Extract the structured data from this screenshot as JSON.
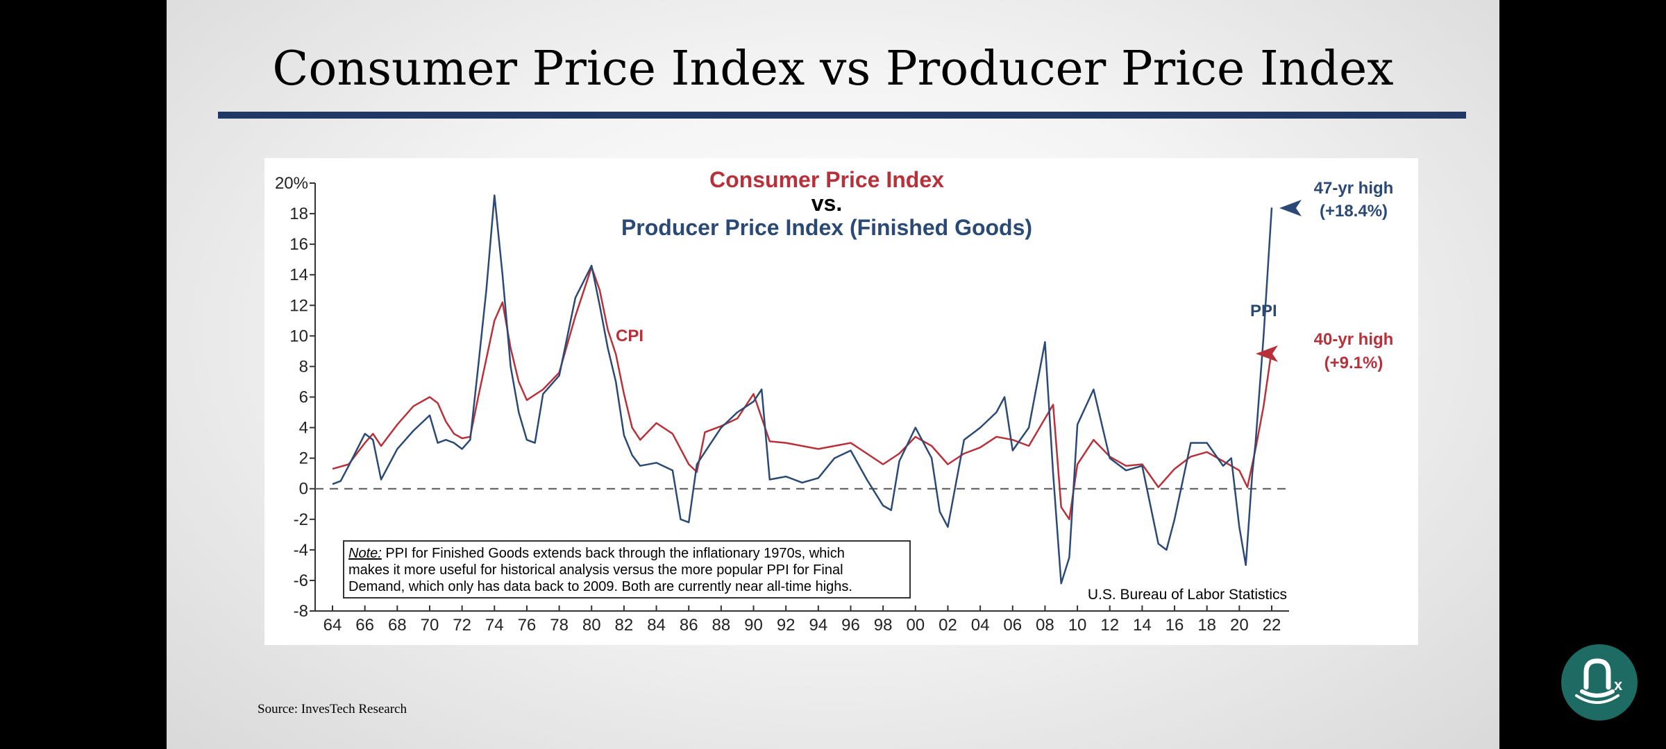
{
  "slide": {
    "title": "Consumer Price Index vs Producer Price Index",
    "source": "Source: InvesTech Research",
    "colors": {
      "rule": "#1f3864",
      "cpi": "#b8313a",
      "ppi": "#2a4a75",
      "badge": "#1d6b62"
    },
    "logo_icon": "bird-logo-icon"
  },
  "chart_data": {
    "type": "line",
    "title_line1": "Consumer Price Index",
    "title_line2": "vs.",
    "title_line3": "Producer Price Index (Finished Goods)",
    "xlabel": "",
    "ylabel": "",
    "x_ticks": [
      "64",
      "66",
      "68",
      "70",
      "72",
      "74",
      "76",
      "78",
      "80",
      "82",
      "84",
      "86",
      "88",
      "90",
      "92",
      "94",
      "96",
      "98",
      "00",
      "02",
      "04",
      "06",
      "08",
      "10",
      "12",
      "14",
      "16",
      "18",
      "20",
      "22"
    ],
    "y_ticks": [
      "20%",
      "18",
      "16",
      "14",
      "12",
      "10",
      "8",
      "6",
      "4",
      "2",
      "0",
      "-2",
      "-4",
      "-6",
      "-8"
    ],
    "xlim": [
      1964,
      2022.6
    ],
    "ylim": [
      -8,
      20
    ],
    "zero_line": "dashed",
    "grid": false,
    "series": [
      {
        "name": "CPI",
        "color": "#b8313a",
        "x": [
          1964,
          1965,
          1966,
          1966.5,
          1967,
          1968,
          1969,
          1970,
          1970.5,
          1971,
          1971.5,
          1972,
          1972.5,
          1973,
          1973.5,
          1974,
          1974.5,
          1975,
          1975.5,
          1976,
          1977,
          1978,
          1979,
          1980,
          1980.5,
          1981,
          1981.5,
          1982,
          1982.5,
          1983,
          1984,
          1985,
          1986,
          1986.5,
          1987,
          1988,
          1989,
          1990,
          1991,
          1992,
          1993,
          1994,
          1995,
          1996,
          1997,
          1998,
          1999,
          2000,
          2001,
          2002,
          2003,
          2004,
          2005,
          2006,
          2007,
          2008,
          2008.5,
          2009,
          2009.5,
          2010,
          2011,
          2012,
          2013,
          2014,
          2015,
          2016,
          2017,
          2018,
          2019,
          2020,
          2020.5,
          2021,
          2021.5,
          2022
        ],
        "values": [
          1.3,
          1.6,
          3.0,
          3.6,
          2.8,
          4.2,
          5.4,
          6.0,
          5.6,
          4.4,
          3.6,
          3.3,
          3.4,
          6.0,
          8.5,
          11.0,
          12.2,
          9.2,
          7.0,
          5.8,
          6.5,
          7.6,
          11.3,
          14.5,
          13.0,
          10.4,
          8.8,
          6.2,
          4.0,
          3.2,
          4.3,
          3.6,
          1.6,
          1.1,
          3.7,
          4.1,
          4.6,
          6.2,
          3.1,
          3.0,
          2.8,
          2.6,
          2.8,
          3.0,
          2.3,
          1.6,
          2.3,
          3.4,
          2.8,
          1.6,
          2.3,
          2.7,
          3.4,
          3.2,
          2.8,
          4.6,
          5.5,
          -1.2,
          -2.0,
          1.6,
          3.2,
          2.1,
          1.5,
          1.6,
          0.1,
          1.3,
          2.1,
          2.4,
          1.8,
          1.2,
          0.1,
          2.6,
          5.4,
          9.1
        ]
      },
      {
        "name": "PPI",
        "color": "#2a4a75",
        "x": [
          1964,
          1964.5,
          1965,
          1966,
          1966.5,
          1967,
          1968,
          1969,
          1970,
          1970.5,
          1971,
          1971.5,
          1972,
          1972.5,
          1973,
          1973.5,
          1974,
          1974.5,
          1975,
          1975.5,
          1976,
          1976.5,
          1977,
          1978,
          1979,
          1980,
          1980.5,
          1981,
          1981.5,
          1982,
          1982.5,
          1983,
          1984,
          1985,
          1985.5,
          1986,
          1986.5,
          1987,
          1988,
          1989,
          1990,
          1990.5,
          1991,
          1992,
          1993,
          1994,
          1995,
          1996,
          1997,
          1998,
          1998.5,
          1999,
          2000,
          2001,
          2001.5,
          2002,
          2003,
          2004,
          2005,
          2005.5,
          2006,
          2007,
          2008,
          2008.5,
          2009,
          2009.5,
          2010,
          2011,
          2012,
          2013,
          2014,
          2015,
          2015.5,
          2016,
          2017,
          2018,
          2019,
          2019.5,
          2020,
          2020.4,
          2020.8,
          2021,
          2021.5,
          2022
        ],
        "values": [
          0.3,
          0.5,
          1.5,
          3.6,
          3.2,
          0.6,
          2.6,
          3.8,
          4.8,
          3.0,
          3.2,
          3.0,
          2.6,
          3.2,
          8.0,
          13.0,
          19.2,
          14.0,
          8.0,
          5.0,
          3.2,
          3.0,
          6.2,
          7.4,
          12.5,
          14.6,
          12.0,
          9.2,
          7.0,
          3.5,
          2.2,
          1.5,
          1.7,
          1.2,
          -2.0,
          -2.2,
          1.6,
          2.4,
          4.0,
          5.0,
          5.7,
          6.5,
          0.6,
          0.8,
          0.4,
          0.7,
          2.0,
          2.5,
          0.6,
          -1.1,
          -1.4,
          1.8,
          4.0,
          2.0,
          -1.5,
          -2.5,
          3.2,
          4.0,
          5.0,
          6.0,
          2.5,
          4.0,
          9.6,
          1.0,
          -6.2,
          -4.5,
          4.2,
          6.5,
          2.0,
          1.2,
          1.5,
          -3.6,
          -4.0,
          -2.0,
          3.0,
          3.0,
          1.5,
          2.0,
          -2.5,
          -5.0,
          1.0,
          3.0,
          10.0,
          18.4
        ]
      }
    ],
    "annotations": {
      "cpi_label": "CPI",
      "ppi_label": "PPI",
      "ppi_high_line1": "47-yr high",
      "ppi_high_line2": "(+18.4%)",
      "cpi_high_line1": "40-yr high",
      "cpi_high_line2": "(+9.1%)",
      "note_lead": "Note:",
      "note_line1": " PPI for Finished Goods extends back through the inflationary 1970s, which",
      "note_line2": "makes it more useful for historical analysis versus the more popular PPI for Final",
      "note_line3": "Demand, which only has data back to 2009.  Both are currently near all-time highs.",
      "source": "U.S. Bureau of Labor Statistics"
    }
  }
}
